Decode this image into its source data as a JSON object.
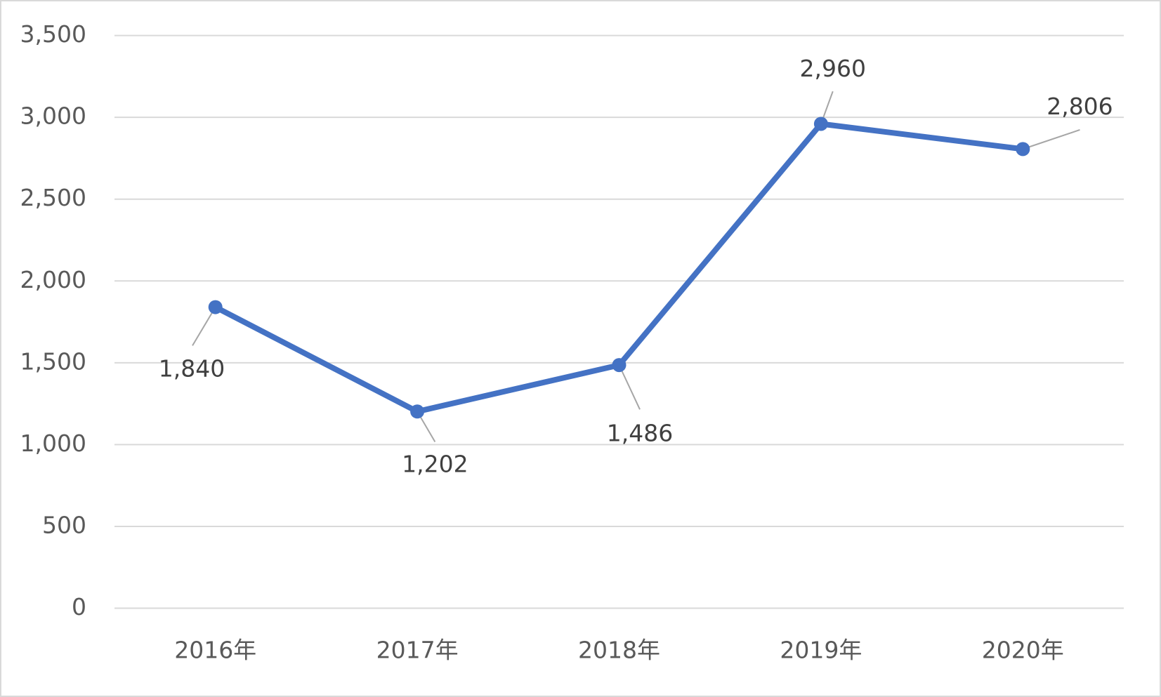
{
  "chart_data": {
    "type": "line",
    "categories": [
      "2016年",
      "2017年",
      "2018年",
      "2019年",
      "2020年"
    ],
    "series": [
      {
        "color": "#4472c4",
        "values": [
          1840,
          1202,
          1486,
          2960,
          2806
        ],
        "value_labels": [
          "1,840",
          "1,202",
          "1,486",
          "2,960",
          "2,806"
        ]
      }
    ],
    "ylim": [
      0,
      3500
    ],
    "yticks": [
      0,
      500,
      {
        "value": 1000,
        "label": "1,000"
      },
      {
        "value": 1500,
        "label": "1,500"
      },
      {
        "value": 2000,
        "label": "2,000"
      },
      {
        "value": 2500,
        "label": "2,500"
      },
      {
        "value": 3000,
        "label": "3,000"
      },
      {
        "value": 3500,
        "label": "3,500"
      }
    ],
    "grid": true
  }
}
